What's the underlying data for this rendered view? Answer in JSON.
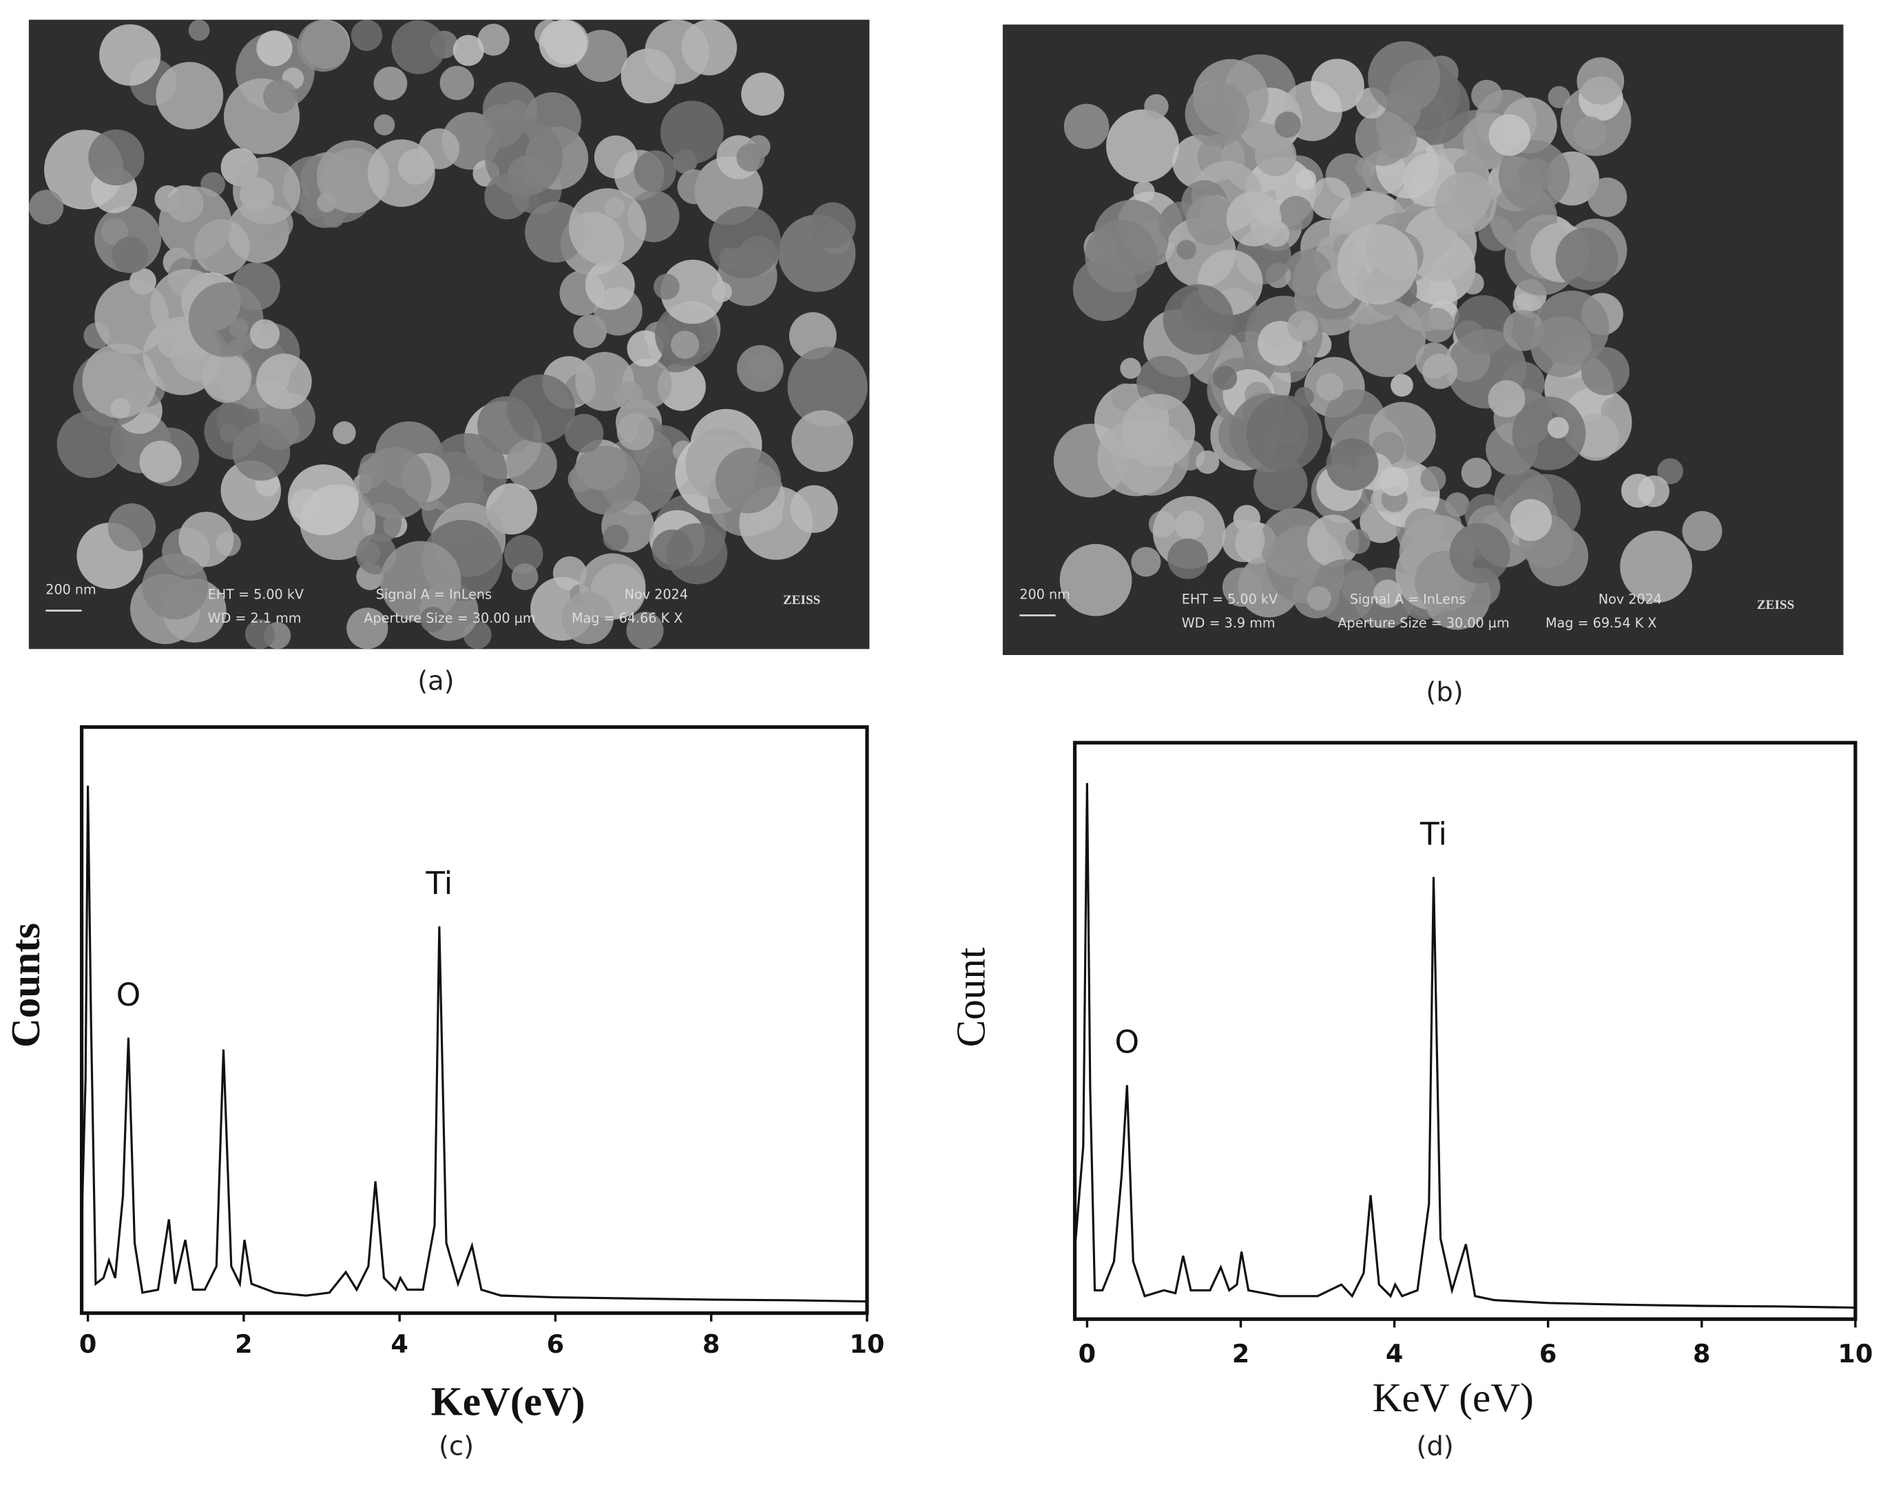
{
  "figures": [
    {
      "label": "(a)",
      "scale_bar": "200 nm",
      "texts": [
        "EHT = 5.00 kV",
        "WD = 2.1 mm",
        "Signal A = InLens",
        "Aperture Size = 30.00 µm",
        "Nov 2024",
        "Mag = 64.66 K X",
        "ZEISS"
      ]
    },
    {
      "label": "(b)",
      "scale_bar": "200 nm",
      "texts": [
        "EHT = 5.00 kV",
        "WD = 3.9 mm",
        "Signal A = InLens",
        "Aperture Size = 30.00 µm",
        "Nov 2024",
        "Mag = 69.54 K X",
        "ZEISS"
      ]
    }
  ],
  "chart_data": [
    {
      "type": "line",
      "panel_label": "(c)",
      "x_label": "KeV(eV)",
      "y_label": "Counts",
      "x": [
        -0.08,
        -0.03,
        0,
        0.04,
        0.1,
        0.2,
        0.27,
        0.35,
        0.45,
        0.52,
        0.6,
        0.7,
        0.9,
        1.04,
        1.12,
        1.25,
        1.35,
        1.5,
        1.65,
        1.74,
        1.84,
        1.95,
        2.01,
        2.1,
        2.4,
        2.8,
        3.1,
        3.31,
        3.45,
        3.6,
        3.69,
        3.8,
        3.95,
        4.01,
        4.1,
        4.3,
        4.45,
        4.51,
        4.6,
        4.75,
        4.93,
        5.05,
        5.3,
        6,
        7,
        8,
        9,
        10
      ],
      "series": [
        {
          "color": "#111111",
          "values": [
            15,
            40,
            90,
            50,
            5,
            6,
            9,
            6,
            20,
            47,
            12,
            3.5,
            4,
            16,
            5,
            12.5,
            4,
            4,
            8,
            45,
            8,
            5,
            12.5,
            5,
            3.5,
            3,
            3.5,
            7,
            4,
            8,
            22.5,
            6,
            4,
            6,
            4,
            4,
            15,
            66,
            12,
            5,
            11.5,
            4,
            3,
            2.7,
            2.5,
            2.3,
            2.2,
            2
          ]
        }
      ],
      "annotations": [
        {
          "text": "O",
          "x": 0.52
        },
        {
          "text": "Ti",
          "x": 4.51
        }
      ],
      "xlim": [
        -0.08,
        10
      ],
      "xticks": [
        0,
        2,
        4,
        6,
        8,
        10
      ],
      "ylim": [
        0,
        100
      ]
    },
    {
      "type": "line",
      "panel_label": "(d)",
      "x_label": "KeV (eV)",
      "y_label": "Count",
      "x": [
        -0.16,
        -0.05,
        0,
        0.04,
        0.1,
        0.2,
        0.35,
        0.45,
        0.52,
        0.6,
        0.75,
        1.0,
        1.15,
        1.25,
        1.35,
        1.6,
        1.74,
        1.85,
        1.95,
        2.01,
        2.1,
        2.5,
        3.0,
        3.31,
        3.45,
        3.6,
        3.69,
        3.8,
        3.95,
        4.01,
        4.1,
        4.3,
        4.45,
        4.51,
        4.6,
        4.75,
        4.93,
        5.05,
        5.3,
        6,
        7,
        8,
        9,
        10
      ],
      "series": [
        {
          "color": "#111111",
          "values": [
            12,
            30,
            93,
            40,
            5,
            5,
            10,
            25,
            40.6,
            10,
            4,
            5,
            4.5,
            11,
            5,
            5,
            9,
            5,
            6,
            11.7,
            5,
            4,
            4,
            6,
            4,
            8,
            21.5,
            6,
            4,
            6,
            4,
            5,
            20,
            76.7,
            14,
            5,
            13,
            4,
            3.3,
            2.8,
            2.5,
            2.3,
            2.2,
            2
          ]
        }
      ],
      "annotations": [
        {
          "text": "O",
          "x": 0.52
        },
        {
          "text": "Ti",
          "x": 4.51
        }
      ],
      "xlim": [
        -0.16,
        10
      ],
      "xticks": [
        0,
        2,
        4,
        6,
        8,
        10
      ],
      "ylim": [
        0,
        100
      ]
    }
  ]
}
